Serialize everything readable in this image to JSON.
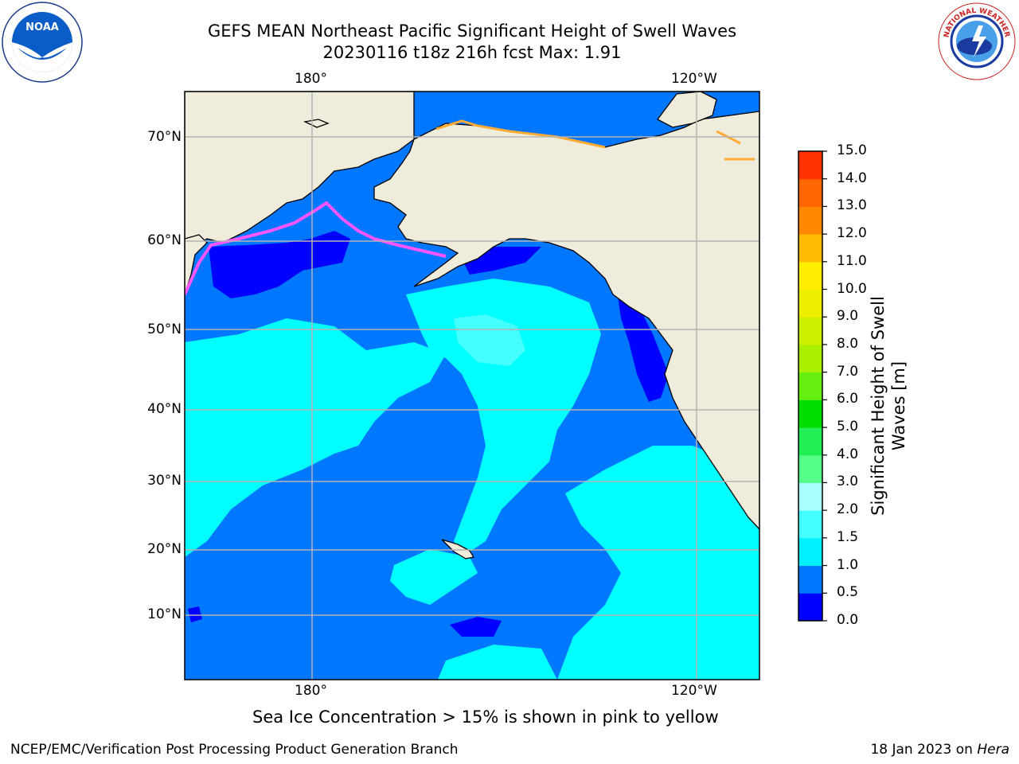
{
  "title": {
    "line1": "GEFS MEAN Northeast Pacific Significant Height of Swell Waves",
    "line2": "20230116 t18z 216h fcst   Max: 1.91"
  },
  "map": {
    "longitude_labels_top": [
      "180°",
      "120°W"
    ],
    "longitude_labels_bottom": [
      "180°",
      "120°W"
    ],
    "latitude_labels": [
      "70°N",
      "60°N",
      "50°N",
      "40°N",
      "30°N",
      "20°N",
      "10°N"
    ],
    "colors": {
      "land": "#efecdc",
      "range_0_0_5": "#0000ff",
      "range_0_5_1_0": "#0077ff",
      "range_1_0_1_5": "#00ffff",
      "range_1_5_2_0": "#44ffff",
      "sea_ice": "#ff55ff"
    }
  },
  "colorbar": {
    "label": "Significant Height of Swell Waves [m]",
    "ticks": [
      "15.0",
      "14.0",
      "13.0",
      "12.0",
      "11.0",
      "10.0",
      "9.0",
      "8.0",
      "7.0",
      "6.0",
      "5.0",
      "4.0",
      "3.0",
      "2.0",
      "1.5",
      "1.0",
      "0.5",
      "0.0"
    ],
    "colors": [
      "#0000ff",
      "#0077ff",
      "#00f0ff",
      "#44ffff",
      "#aaffff",
      "#55ff88",
      "#22ee55",
      "#00dd00",
      "#66ee11",
      "#aaee00",
      "#ccee00",
      "#eeee00",
      "#ffee00",
      "#ffbb00",
      "#ff8800",
      "#ff6600",
      "#ff3300"
    ]
  },
  "note": "Sea Ice Concentration > 15% is shown in pink to yellow",
  "footer": {
    "left": "NCEP/EMC/Verification Post Processing Product Generation Branch",
    "right_prefix": "18 Jan 2023 on ",
    "right_host": "Hera"
  },
  "logos": {
    "left": "noaa-logo",
    "right": "national-weather-service-logo"
  }
}
